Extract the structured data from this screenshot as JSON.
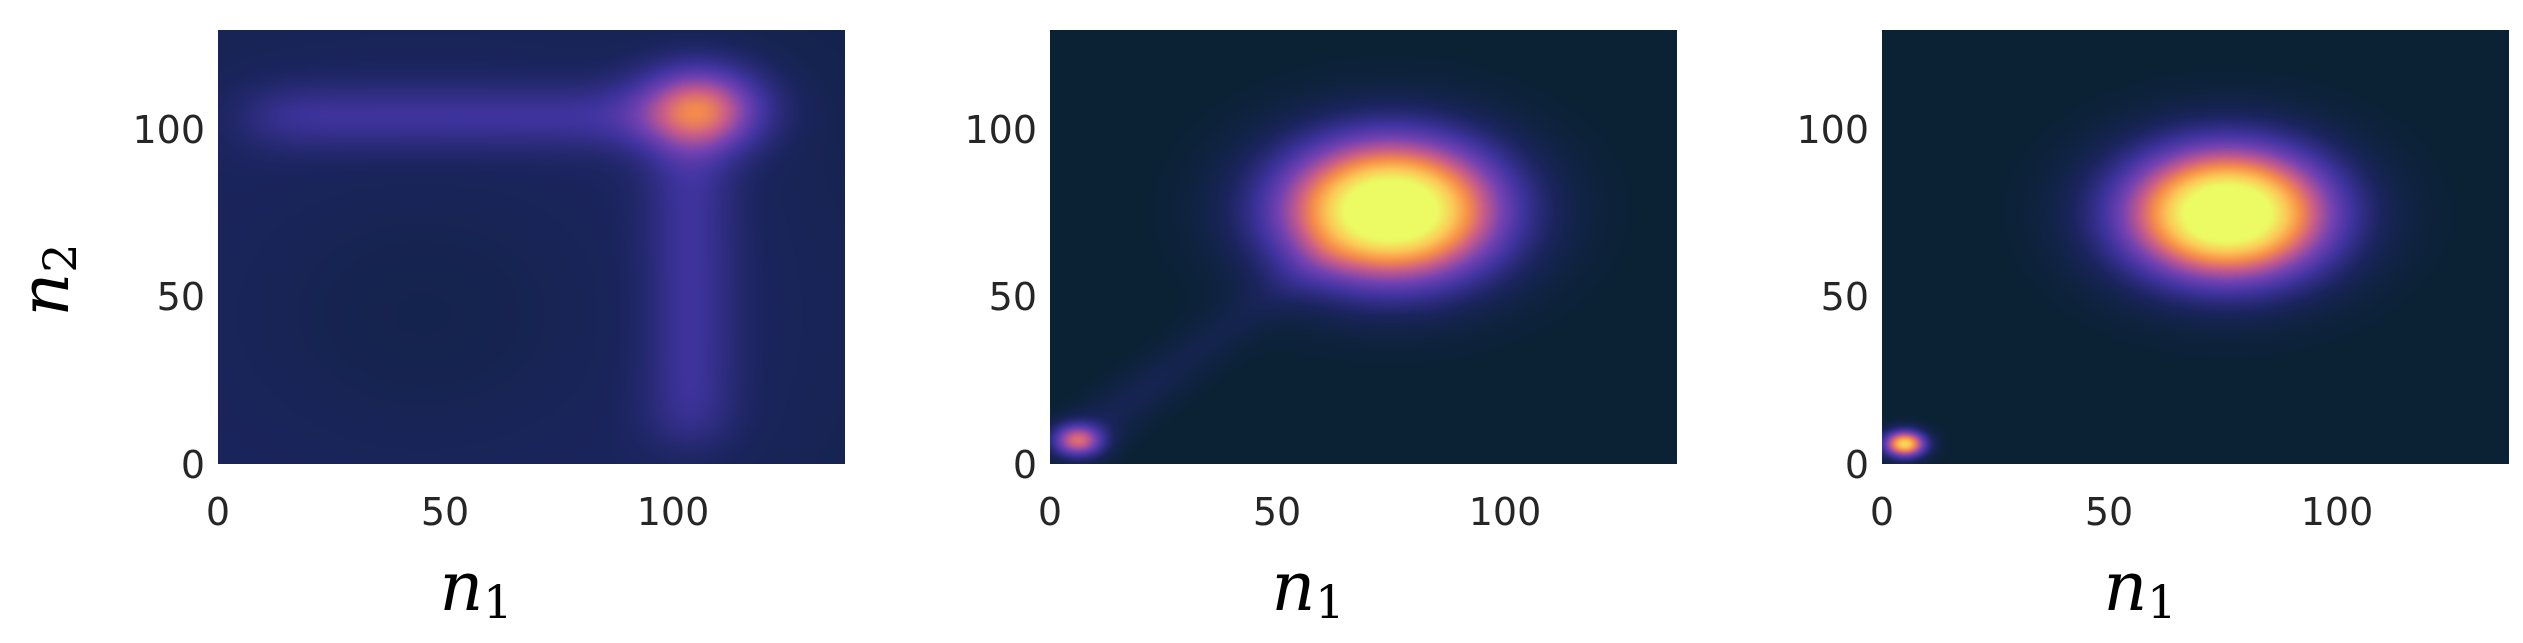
{
  "chart_data": [
    {
      "type": "heatmap",
      "panel": "left",
      "title": "",
      "xlabel": {
        "base": "n",
        "sub": "1"
      },
      "ylabel": {
        "base": "n",
        "sub": "2"
      },
      "xlim": [
        0,
        138
      ],
      "ylim": [
        0,
        130
      ],
      "xticks": [
        0,
        50,
        100
      ],
      "yticks": [
        0,
        50,
        100
      ],
      "xtick_labels": [
        "0",
        "50",
        "100"
      ],
      "ytick_labels": [
        "0",
        "50",
        "100"
      ],
      "grid": false,
      "colormap": "dark-navy-purple-orange-yellow",
      "background_level": 0.07,
      "features": [
        {
          "kind": "blob",
          "x": 107,
          "y": 107,
          "sx": 10,
          "sy": 9,
          "amp": 0.35
        },
        {
          "kind": "band",
          "orientation": "horizontal",
          "position": 104,
          "width": 7,
          "from": 8,
          "to": 115,
          "amp": 0.15
        },
        {
          "kind": "band",
          "orientation": "vertical",
          "position": 104,
          "width": 7,
          "from": 8,
          "to": 115,
          "amp": 0.15
        },
        {
          "kind": "ring",
          "cx": 45,
          "cy": 45,
          "radius": 62,
          "width": 30,
          "amp": 0.05
        }
      ]
    },
    {
      "type": "heatmap",
      "panel": "center",
      "title": "",
      "xlabel": {
        "base": "n",
        "sub": "1"
      },
      "ylabel": null,
      "xlim": [
        0,
        138
      ],
      "ylim": [
        0,
        130
      ],
      "xticks": [
        0,
        50,
        100
      ],
      "yticks": [
        0,
        50,
        100
      ],
      "xtick_labels": [
        "0",
        "50",
        "100"
      ],
      "ytick_labels": [
        "0",
        "50",
        "100"
      ],
      "grid": false,
      "colormap": "dark-navy-purple-orange-yellow",
      "background_level": 0.0,
      "features": [
        {
          "kind": "blob",
          "x": 75,
          "y": 76,
          "sx": 17,
          "sy": 15,
          "amp": 1.2
        },
        {
          "kind": "blob",
          "x": 6,
          "y": 7,
          "sx": 4,
          "sy": 3.5,
          "amp": 0.55
        },
        {
          "kind": "streak",
          "x0": 8,
          "y0": 9,
          "x1": 60,
          "y1": 62,
          "width": 5,
          "amp": 0.1
        }
      ]
    },
    {
      "type": "heatmap",
      "panel": "right",
      "title": "",
      "xlabel": {
        "base": "n",
        "sub": "1"
      },
      "ylabel": null,
      "xlim": [
        0,
        138
      ],
      "ylim": [
        0,
        130
      ],
      "xticks": [
        0,
        50,
        100
      ],
      "yticks": [
        0,
        50,
        100
      ],
      "xtick_labels": [
        "0",
        "50",
        "100"
      ],
      "ytick_labels": [
        "0",
        "50",
        "100"
      ],
      "grid": false,
      "colormap": "dark-navy-purple-orange-yellow",
      "background_level": 0.0,
      "features": [
        {
          "kind": "blob",
          "x": 76,
          "y": 75,
          "sx": 16,
          "sy": 14,
          "amp": 1.2
        },
        {
          "kind": "blob",
          "x": 5,
          "y": 6,
          "sx": 3.2,
          "sy": 2.8,
          "amp": 0.9
        }
      ]
    }
  ]
}
